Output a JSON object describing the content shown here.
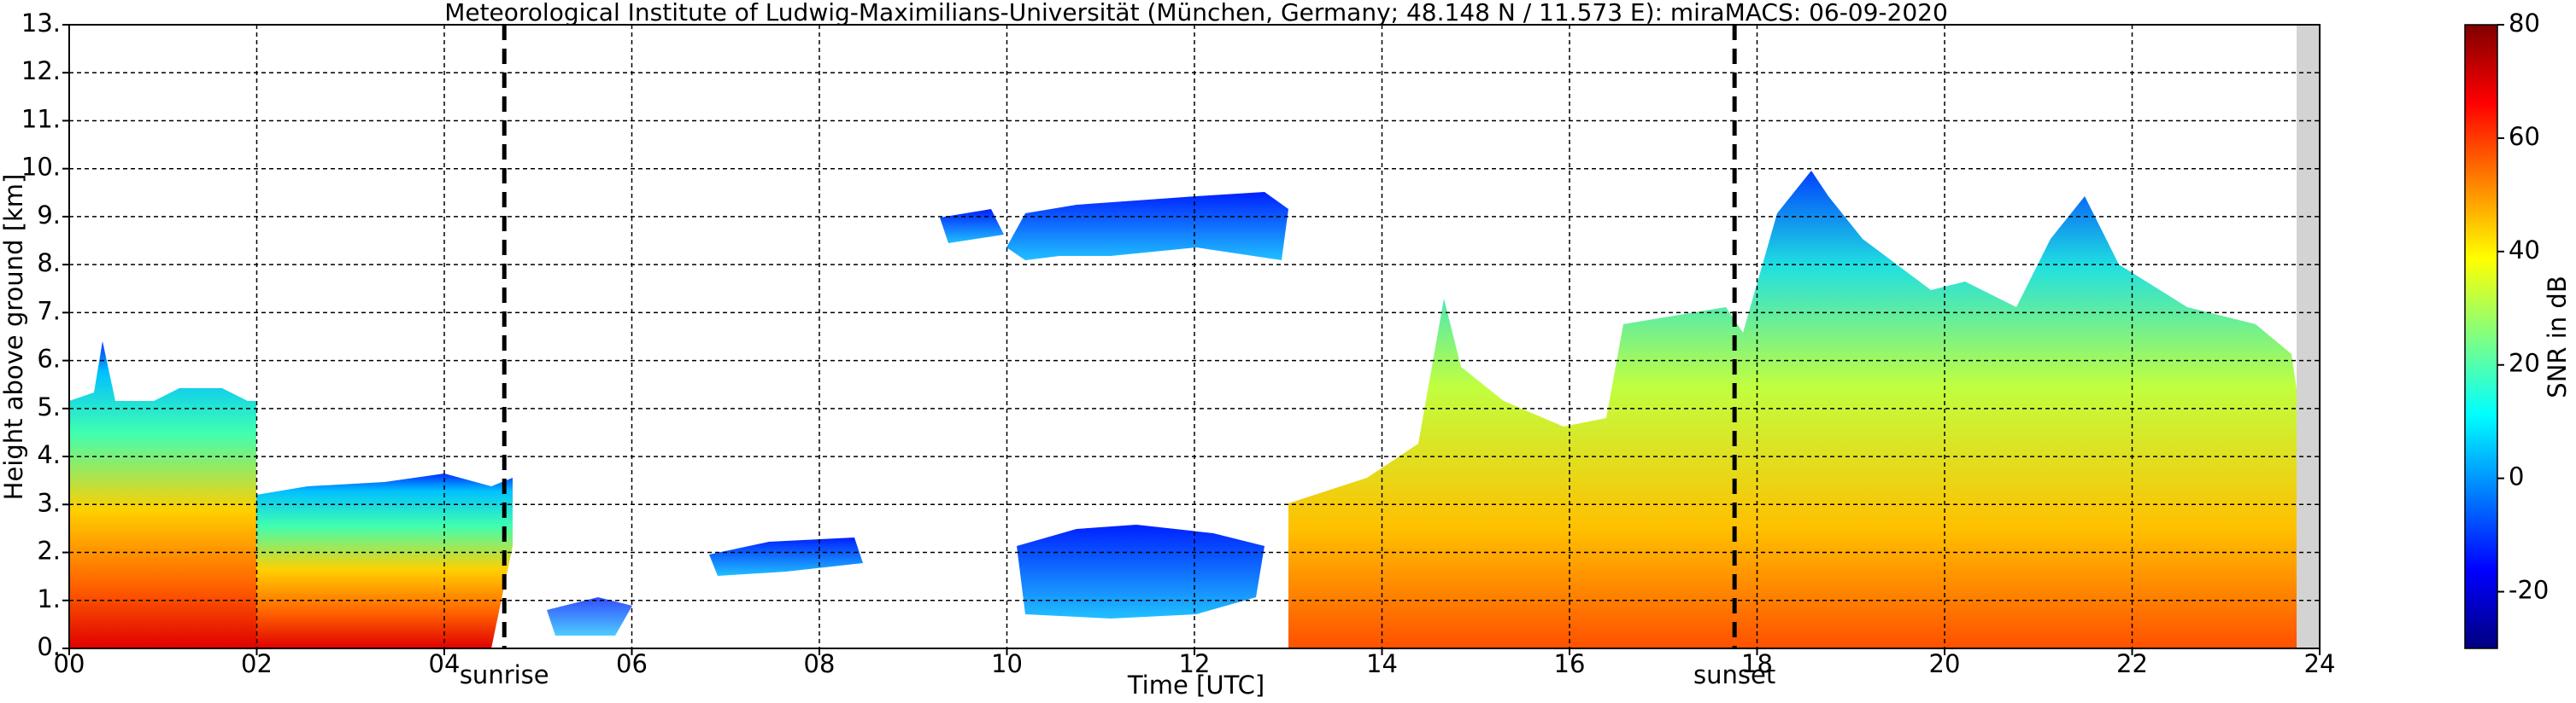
{
  "chart_data": {
    "type": "heatmap",
    "title": "Meteorological Institute of Ludwig-Maximilians-Universität (München, Germany; 48.148 N / 11.573 E):    miraMACS: 06-09-2020",
    "x_label": "Time [UTC]",
    "y_label": "Height above ground [km]",
    "xlim": [
      0,
      24
    ],
    "xticks": [
      {
        "value": 0,
        "label": "00"
      },
      {
        "value": 2,
        "label": "02"
      },
      {
        "value": 4,
        "label": "04"
      },
      {
        "value": 6,
        "label": "06"
      },
      {
        "value": 8,
        "label": "08"
      },
      {
        "value": 10,
        "label": "10"
      },
      {
        "value": 12,
        "label": "12"
      },
      {
        "value": 14,
        "label": "14"
      },
      {
        "value": 16,
        "label": "16"
      },
      {
        "value": 18,
        "label": "18"
      },
      {
        "value": 20,
        "label": "20"
      },
      {
        "value": 22,
        "label": "22"
      },
      {
        "value": 24,
        "label": "24"
      }
    ],
    "ylim": [
      0,
      13
    ],
    "yticks": [
      {
        "value": 0,
        "label": "0."
      },
      {
        "value": 1,
        "label": "1."
      },
      {
        "value": 2,
        "label": "2."
      },
      {
        "value": 3,
        "label": "3."
      },
      {
        "value": 4,
        "label": "4."
      },
      {
        "value": 5,
        "label": "5."
      },
      {
        "value": 6,
        "label": "6."
      },
      {
        "value": 7,
        "label": "7."
      },
      {
        "value": 8,
        "label": "8."
      },
      {
        "value": 9,
        "label": "9."
      },
      {
        "value": 10,
        "label": "10."
      },
      {
        "value": 11,
        "label": "11."
      },
      {
        "value": 12,
        "label": "12."
      },
      {
        "value": 13,
        "label": "13."
      }
    ],
    "grid": true,
    "annotations": [
      {
        "label": "sunrise",
        "x": 4.64
      },
      {
        "label": "sunset",
        "x": 17.76
      }
    ],
    "colorbar": {
      "label": "SNR in dB",
      "lim": [
        -30,
        80
      ],
      "ticks": [
        -20,
        0,
        20,
        40,
        60,
        80
      ]
    }
  }
}
